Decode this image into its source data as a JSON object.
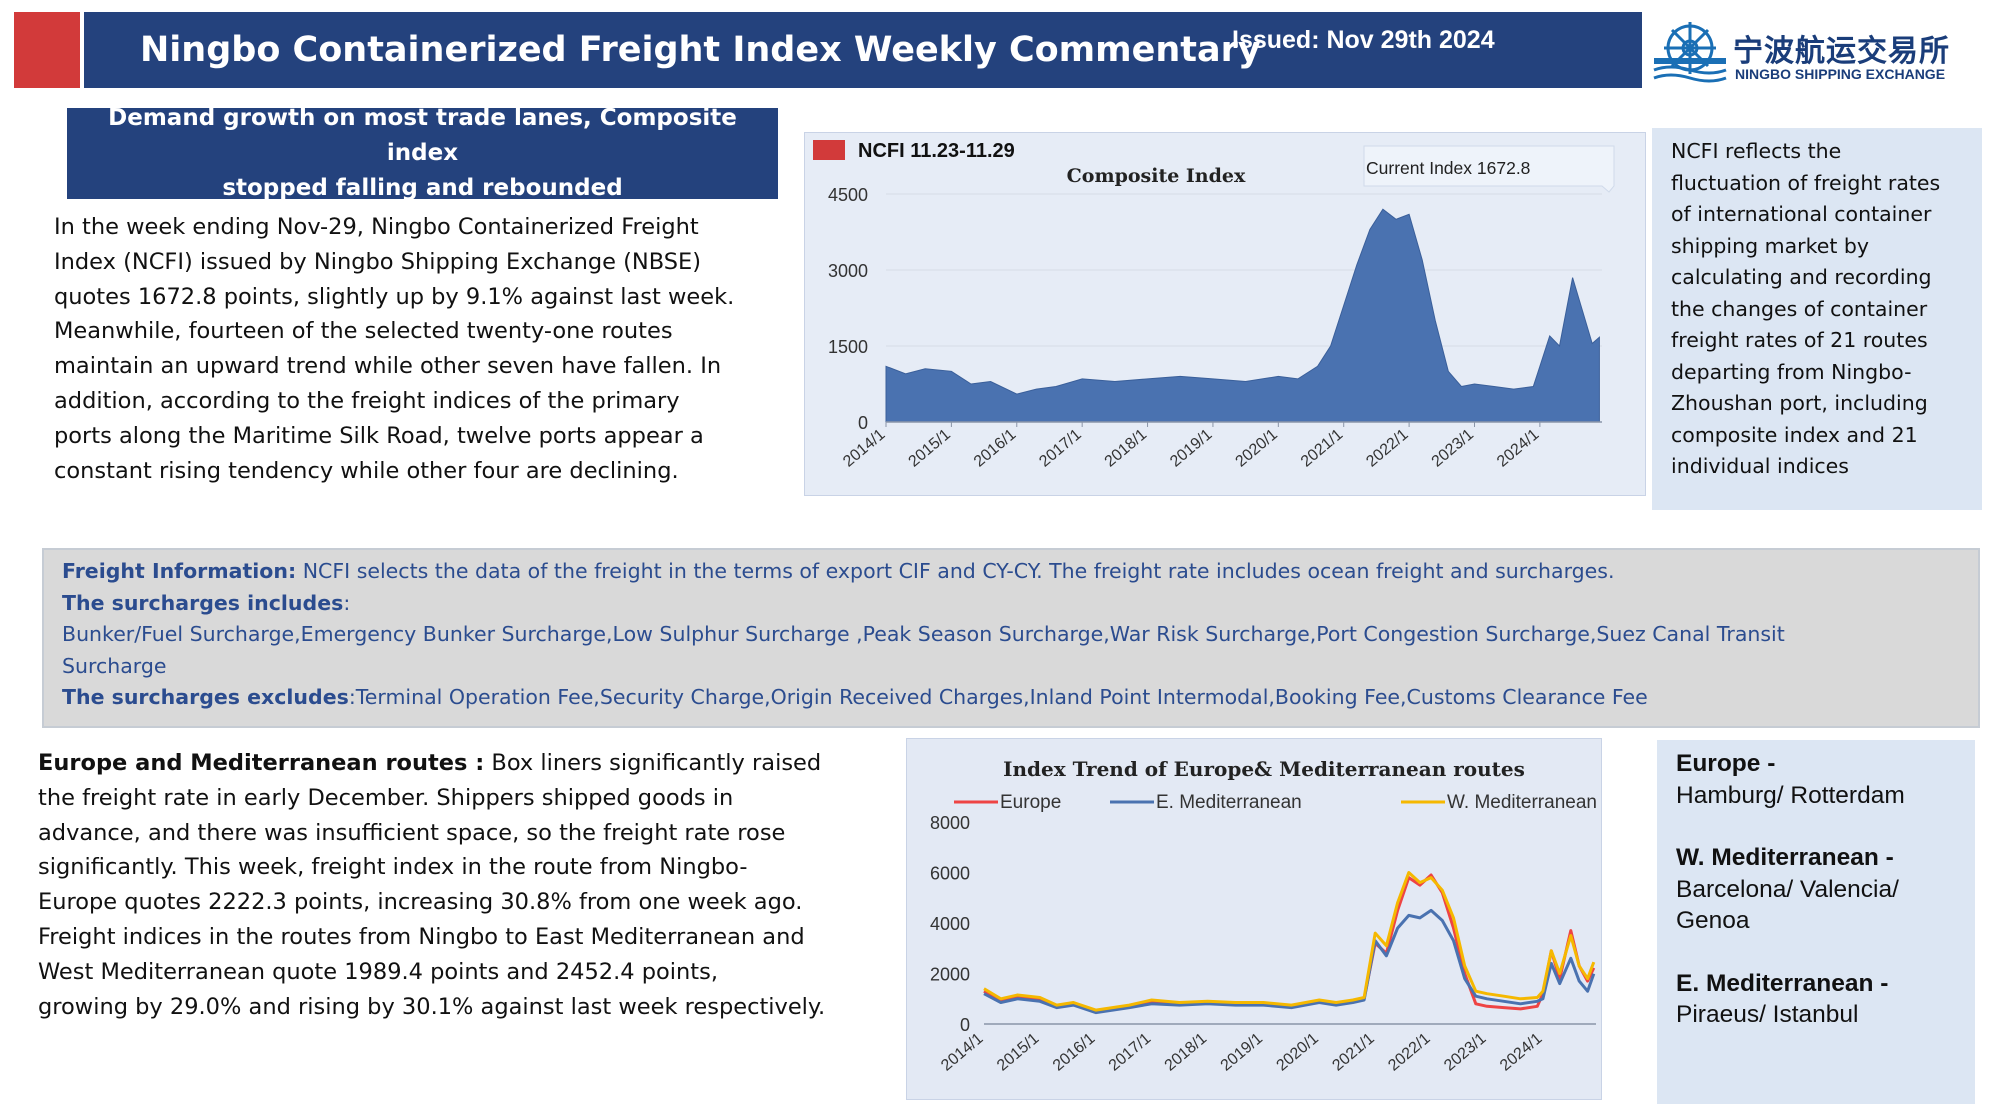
{
  "header": {
    "title": "Ningbo Containerized Freight Index Weekly Commentary",
    "issued": "Issued:  Nov 29th  2024",
    "logo_cn": "宁波航运交易所",
    "logo_en": "NINGBO SHIPPING EXCHANGE",
    "accent_red": "#d23a3a",
    "navy": "#24427d"
  },
  "headline": {
    "line1": "Demand growth on most trade lanes, Composite index",
    "line2": "stopped falling and rebounded"
  },
  "intro": {
    "lines": [
      "In the week ending Nov-29, Ningbo Containerized Freight",
      "Index (NCFI) issued by Ningbo Shipping Exchange (NBSE)",
      "quotes 1672.8 points, slightly up by 9.1% against last week.",
      "Meanwhile, fourteen of the selected twenty-one routes",
      "maintain an upward trend while other seven have fallen. In",
      "addition, according to the freight indices of the primary",
      "ports along the Maritime Silk Road, twelve ports appear a",
      "constant rising tendency while other four are declining."
    ]
  },
  "ncfi_description": {
    "lines": [
      "NCFI reflects the",
      "fluctuation of freight rates",
      "of international container",
      "shipping market by",
      "calculating and recording",
      "the changes of container",
      "freight rates of 21 routes",
      "departing from Ningbo-",
      "Zhoushan port, including",
      "composite index and 21",
      "individual indices"
    ]
  },
  "freight_info": {
    "label1": "Freight Information:",
    "text1": " NCFI selects the data of the freight in the terms of export CIF and CY-CY. The freight  rate includes ocean freight and surcharges.",
    "label2": "The surcharges includes",
    "text2": ":",
    "line3": "Bunker/Fuel Surcharge,Emergency Bunker Surcharge,Low Sulphur Surcharge ,Peak Season Surcharge,War Risk Surcharge,Port Congestion Surcharge,Suez Canal Transit",
    "line4": "Surcharge",
    "label5": "The surcharges excludes",
    "text5": ":Terminal Operation Fee,Security Charge,Origin Received Charges,Inland Point Intermodal,Booking Fee,Customs Clearance Fee"
  },
  "europe_section": {
    "label": "Europe and Mediterranean routes :",
    "first_line_rest": "  Box liners significantly raised",
    "lines": [
      "the freight rate in early December. Shippers shipped goods in",
      "advance, and there was insufficient space, so the freight rate rose",
      "significantly. This week, freight index in the route from Ningbo-",
      "Europe quotes 2222.3 points, increasing 30.8% from one week ago.",
      "Freight indices in the routes from Ningbo to East Mediterranean and",
      "West Mediterranean quote 1989.4 points and 2452.4 points,",
      "growing by 29.0% and rising by 30.1% against last week respectively."
    ]
  },
  "ports": {
    "europe_label": "Europe -",
    "europe_ports": "Hamburg/ Rotterdam",
    "wmed_label": "W. Mediterranean -",
    "wmed_ports_1": "Barcelona/ Valencia/",
    "wmed_ports_2": "Genoa",
    "emed_label": "E. Mediterranean -",
    "emed_ports": "Piraeus/ Istanbul"
  },
  "chart_data": [
    {
      "type": "area",
      "title": "Composite Index",
      "legend": "NCFI 11.23-11.29",
      "annotation": "Current Index 1672.8",
      "xlabel": "",
      "ylabel": "",
      "ylim": [
        0,
        4500
      ],
      "yticks": [
        "4500",
        "3000",
        "1500",
        "0"
      ],
      "xticks": [
        "2014/1",
        "2015/1",
        "2016/1",
        "2017/1",
        "2018/1",
        "2019/1",
        "2020/1",
        "2021/1",
        "2022/1",
        "2023/1",
        "2024/1"
      ],
      "color": "#4a72b0",
      "series": [
        {
          "x": [
            2014.0,
            2014.3,
            2014.6,
            2015.0,
            2015.3,
            2015.6,
            2016.0,
            2016.3,
            2016.6,
            2017.0,
            2017.5,
            2018.0,
            2018.5,
            2019.0,
            2019.5,
            2020.0,
            2020.3,
            2020.6,
            2020.8,
            2021.0,
            2021.2,
            2021.4,
            2021.6,
            2021.8,
            2022.0,
            2022.2,
            2022.4,
            2022.6,
            2022.8,
            2023.0,
            2023.3,
            2023.6,
            2023.9,
            2024.0,
            2024.15,
            2024.3,
            2024.5,
            2024.65,
            2024.8,
            2024.91
          ],
          "values": [
            1100,
            950,
            1050,
            1000,
            750,
            800,
            550,
            650,
            700,
            850,
            800,
            850,
            900,
            850,
            800,
            900,
            850,
            1100,
            1500,
            2300,
            3100,
            3800,
            4200,
            4000,
            4100,
            3200,
            2000,
            1000,
            700,
            750,
            700,
            650,
            700,
            1100,
            1700,
            1500,
            2850,
            2200,
            1550,
            1672.8
          ]
        }
      ]
    },
    {
      "type": "line",
      "title": "Index Trend of Europe& Mediterranean routes",
      "xlabel": "",
      "ylabel": "",
      "ylim": [
        0,
        8000
      ],
      "yticks": [
        "8000",
        "6000",
        "4000",
        "2000",
        "0"
      ],
      "xticks": [
        "2014/1",
        "2015/1",
        "2016/1",
        "2017/1",
        "2018/1",
        "2019/1",
        "2020/1",
        "2021/1",
        "2022/1",
        "2023/1",
        "2024/1"
      ],
      "x": [
        2014.0,
        2014.3,
        2014.6,
        2015.0,
        2015.3,
        2015.6,
        2016.0,
        2016.3,
        2016.6,
        2017.0,
        2017.5,
        2018.0,
        2018.5,
        2019.0,
        2019.5,
        2020.0,
        2020.3,
        2020.6,
        2020.8,
        2021.0,
        2021.2,
        2021.4,
        2021.6,
        2021.8,
        2022.0,
        2022.2,
        2022.4,
        2022.6,
        2022.8,
        2023.0,
        2023.3,
        2023.6,
        2023.9,
        2024.0,
        2024.15,
        2024.3,
        2024.5,
        2024.65,
        2024.8,
        2024.91
      ],
      "series": [
        {
          "name": "Europe",
          "color": "#ee4444",
          "values": [
            1300,
            900,
            1100,
            1000,
            700,
            800,
            500,
            600,
            700,
            900,
            800,
            850,
            800,
            800,
            700,
            900,
            800,
            900,
            1000,
            3200,
            2800,
            4500,
            5800,
            5500,
            5900,
            5200,
            3800,
            2000,
            800,
            700,
            650,
            600,
            700,
            1200,
            2900,
            1800,
            3700,
            2300,
            1700,
            2222.3
          ]
        },
        {
          "name": "E. Mediterranean",
          "color": "#4a72b0",
          "values": [
            1200,
            850,
            1000,
            900,
            650,
            750,
            450,
            550,
            650,
            800,
            750,
            800,
            750,
            750,
            650,
            850,
            750,
            850,
            950,
            3300,
            2700,
            3800,
            4300,
            4200,
            4500,
            4100,
            3300,
            1800,
            1100,
            1000,
            900,
            800,
            900,
            1000,
            2400,
            1600,
            2600,
            1700,
            1300,
            1989.4
          ]
        },
        {
          "name": "W. Mediterranean",
          "color": "#f5b800",
          "values": [
            1400,
            1000,
            1150,
            1050,
            750,
            850,
            550,
            650,
            750,
            950,
            850,
            900,
            850,
            850,
            750,
            950,
            850,
            950,
            1050,
            3600,
            3100,
            4800,
            6000,
            5600,
            5800,
            5300,
            4200,
            2300,
            1300,
            1200,
            1100,
            1000,
            1050,
            1300,
            2900,
            2000,
            3500,
            2300,
            1800,
            2452.4
          ]
        }
      ]
    }
  ]
}
